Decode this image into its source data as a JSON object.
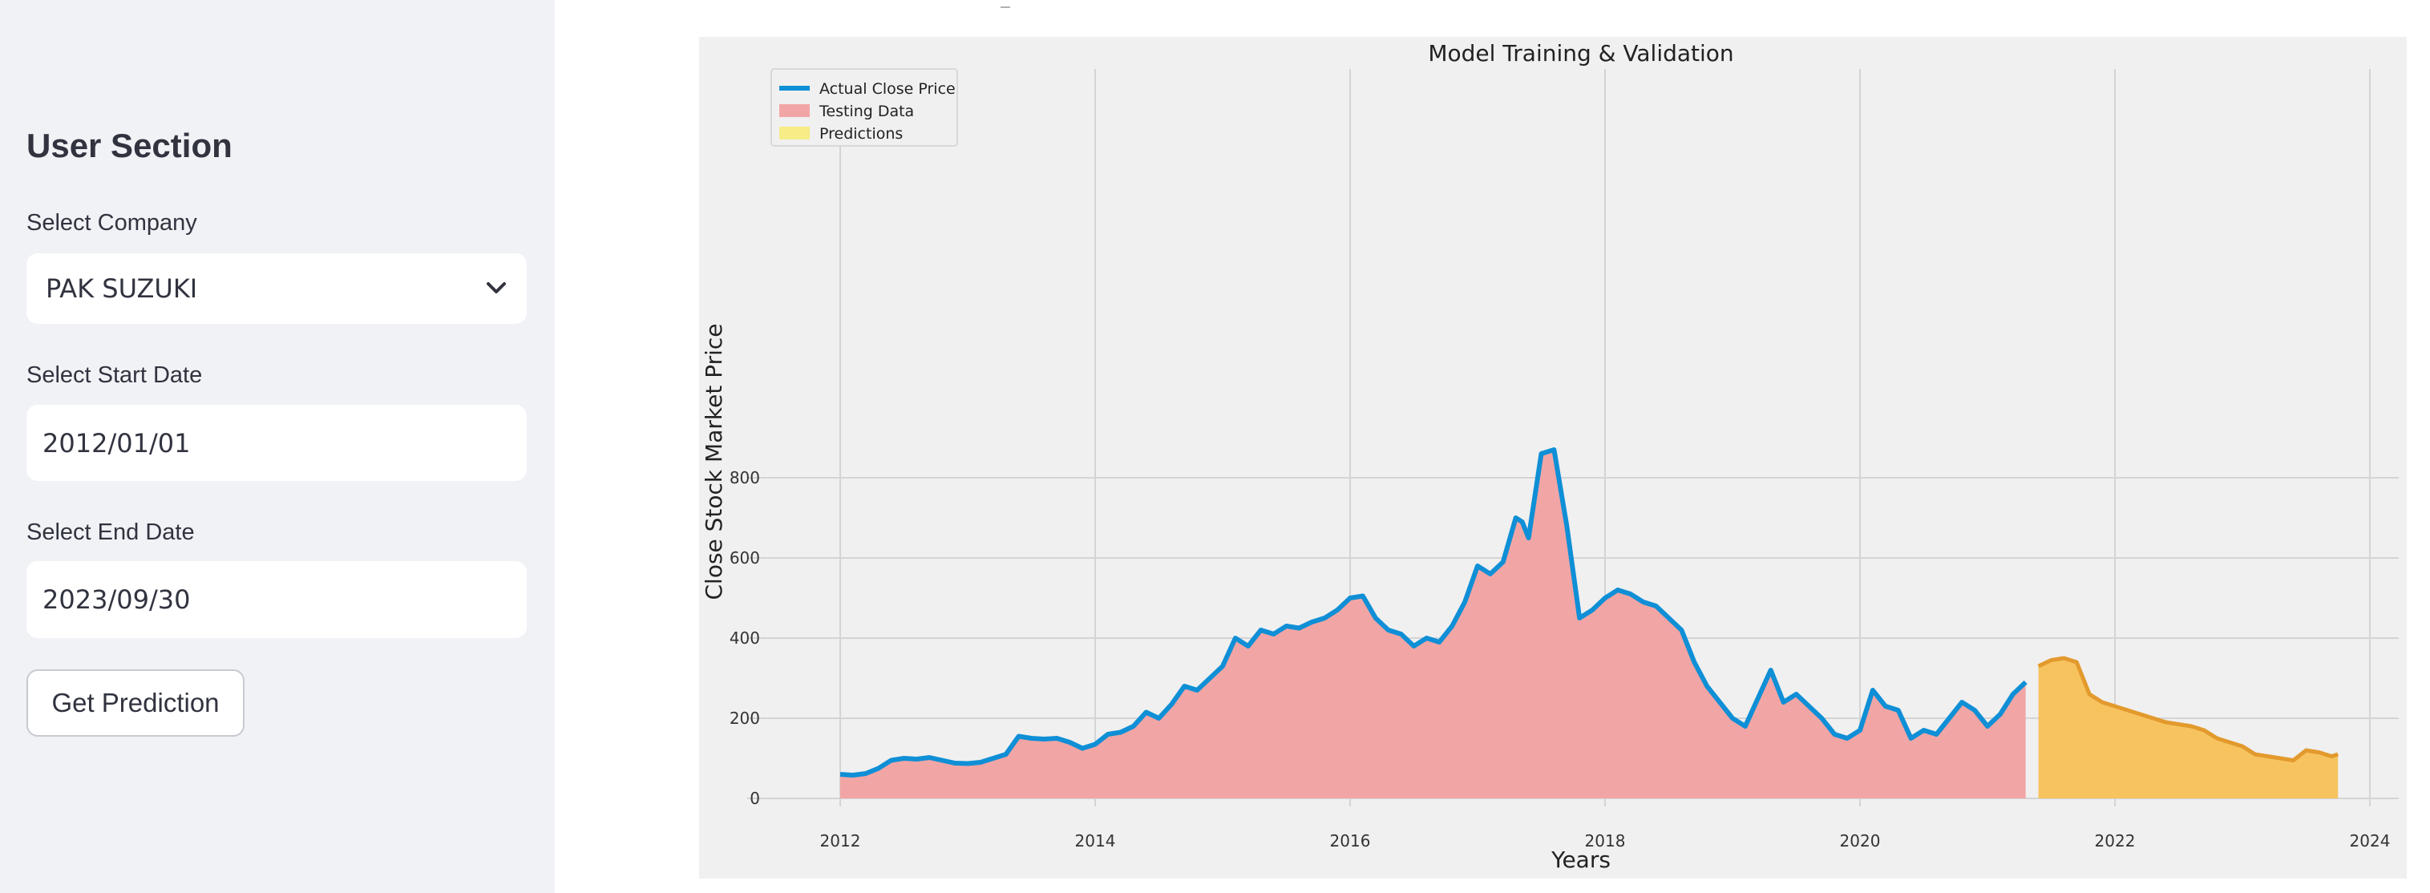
{
  "sidebar": {
    "title": "User Section",
    "company_label": "Select Company",
    "company_value": "PAK SUZUKI",
    "start_label": "Select Start Date",
    "start_value": "2012/01/01",
    "end_label": "Select End Date",
    "end_value": "2023/09/30",
    "button_label": "Get Prediction"
  },
  "colors": {
    "actual": "#0f8fd6",
    "testing_fill": "#f2a5a5",
    "prediction_fill": "#f6c35f",
    "prediction_line": "#e39a2d",
    "legend_pred_swatch": "#f7ec86",
    "plot_bg": "#f0f0f0"
  },
  "chart_data": {
    "type": "area",
    "title": "Model Training & Validation",
    "xlabel": "Years",
    "ylabel": "Close Stock Market Price",
    "xlim": [
      2011.4,
      2024.25
    ],
    "ylim": [
      -20,
      935
    ],
    "xticks": [
      2012,
      2014,
      2016,
      2018,
      2020,
      2022,
      2024
    ],
    "yticks": [
      0,
      200,
      400,
      600,
      800
    ],
    "grid": true,
    "legend_position": "top-left",
    "series": [
      {
        "name": "Actual Close Price",
        "x": [
          2012.0,
          2012.1,
          2012.2,
          2012.3,
          2012.4,
          2012.5,
          2012.6,
          2012.7,
          2012.8,
          2012.9,
          2013.0,
          2013.1,
          2013.2,
          2013.3,
          2013.4,
          2013.5,
          2013.6,
          2013.7,
          2013.8,
          2013.9,
          2014.0,
          2014.1,
          2014.2,
          2014.3,
          2014.4,
          2014.5,
          2014.6,
          2014.7,
          2014.8,
          2014.9,
          2015.0,
          2015.1,
          2015.2,
          2015.3,
          2015.4,
          2015.5,
          2015.6,
          2015.7,
          2015.8,
          2015.9,
          2016.0,
          2016.1,
          2016.2,
          2016.3,
          2016.4,
          2016.5,
          2016.6,
          2016.7,
          2016.8,
          2016.9,
          2017.0,
          2017.1,
          2017.2,
          2017.3,
          2017.35,
          2017.4,
          2017.5,
          2017.6,
          2017.7,
          2017.8,
          2017.9,
          2018.0,
          2018.1,
          2018.2,
          2018.3,
          2018.4,
          2018.5,
          2018.6,
          2018.7,
          2018.8,
          2018.9,
          2019.0,
          2019.1,
          2019.2,
          2019.3,
          2019.4,
          2019.5,
          2019.6,
          2019.7,
          2019.8,
          2019.9,
          2020.0,
          2020.1,
          2020.2,
          2020.3,
          2020.4,
          2020.5,
          2020.6,
          2020.7,
          2020.8,
          2020.9,
          2021.0,
          2021.1,
          2021.2,
          2021.3,
          2021.4,
          2021.5,
          2021.6,
          2021.7,
          2021.8,
          2021.9,
          2022.0,
          2022.1,
          2022.2,
          2022.3,
          2022.4,
          2022.5,
          2022.6,
          2022.7,
          2022.8,
          2022.9,
          2023.0,
          2023.1,
          2023.2,
          2023.3,
          2023.4,
          2023.5,
          2023.6,
          2023.7,
          2023.75
        ],
        "values": [
          60,
          58,
          62,
          75,
          95,
          100,
          98,
          102,
          95,
          88,
          87,
          90,
          100,
          110,
          155,
          150,
          148,
          150,
          140,
          125,
          135,
          160,
          165,
          180,
          215,
          200,
          235,
          280,
          270,
          300,
          330,
          400,
          380,
          420,
          410,
          430,
          425,
          440,
          450,
          470,
          500,
          505,
          450,
          420,
          410,
          380,
          400,
          390,
          430,
          490,
          580,
          560,
          590,
          700,
          690,
          650,
          860,
          870,
          680,
          450,
          470,
          500,
          520,
          510,
          490,
          480,
          450,
          420,
          340,
          280,
          240,
          200,
          180,
          250,
          320,
          240,
          260,
          230,
          200,
          160,
          150,
          170,
          270,
          230,
          220,
          150,
          170,
          160,
          200,
          240,
          220,
          180,
          210,
          260,
          290,
          330,
          345,
          350,
          340,
          260,
          240,
          230,
          220,
          210,
          200,
          190,
          185,
          180,
          170,
          150,
          140,
          130,
          110,
          105,
          100,
          95,
          120,
          115,
          105,
          110
        ],
        "testing_end": 2021.33
      }
    ]
  }
}
